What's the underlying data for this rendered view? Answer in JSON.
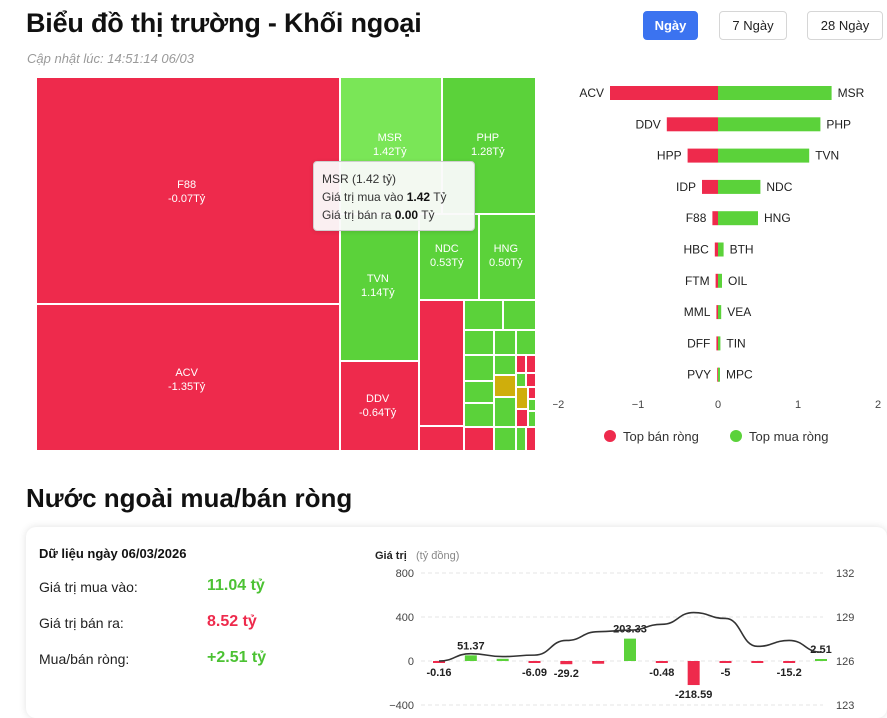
{
  "header": {
    "title": "Biểu đồ thị trường - Khối ngoại",
    "updated": "Cập nhật lúc: 14:51:14 06/03",
    "tabs": [
      {
        "label": "Ngày",
        "active": true
      },
      {
        "label": "7 Ngày",
        "active": false
      },
      {
        "label": "28 Ngày",
        "active": false
      }
    ]
  },
  "treemap": {
    "labels": [
      {
        "code": "F88",
        "value": "-0.07Tỷ"
      },
      {
        "code": "ACV",
        "value": "-1.35Tỷ"
      },
      {
        "code": "MSR",
        "value": "1.42Tỷ"
      },
      {
        "code": "PHP",
        "value": "1.28Tỷ"
      },
      {
        "code": "TVN",
        "value": "1.14Tỷ"
      },
      {
        "code": "NDC",
        "value": "0.53Tỷ"
      },
      {
        "code": "HNG",
        "value": "0.50Tỷ"
      },
      {
        "code": "DDV",
        "value": "-0.64Tỷ"
      }
    ]
  },
  "tooltip": {
    "line1": "MSR (1.42 tỷ)",
    "buy_label": "Giá trị mua vào",
    "buy_value": "1.42",
    "sell_label": "Giá trị bán ra",
    "sell_value": "0.00",
    "unit": "Tỷ"
  },
  "top_chart": {
    "sell": [
      {
        "code": "ACV",
        "value": -1.35
      },
      {
        "code": "DDV",
        "value": -0.64
      },
      {
        "code": "HPP",
        "value": -0.38
      },
      {
        "code": "IDP",
        "value": -0.2
      },
      {
        "code": "F88",
        "value": -0.07
      },
      {
        "code": "HBC",
        "value": -0.04
      },
      {
        "code": "FTM",
        "value": -0.03
      },
      {
        "code": "MML",
        "value": -0.02
      },
      {
        "code": "DFF",
        "value": -0.02
      },
      {
        "code": "PVY",
        "value": -0.01
      }
    ],
    "buy": [
      {
        "code": "MSR",
        "value": 1.42
      },
      {
        "code": "PHP",
        "value": 1.28
      },
      {
        "code": "TVN",
        "value": 1.14
      },
      {
        "code": "NDC",
        "value": 0.53
      },
      {
        "code": "HNG",
        "value": 0.5
      },
      {
        "code": "BTH",
        "value": 0.07
      },
      {
        "code": "OIL",
        "value": 0.05
      },
      {
        "code": "VEA",
        "value": 0.04
      },
      {
        "code": "TIN",
        "value": 0.03
      },
      {
        "code": "MPC",
        "value": 0.02
      }
    ],
    "x_ticks": [
      "−2",
      "−1",
      "0",
      "1",
      "2"
    ],
    "xlim": [
      -2,
      2
    ],
    "legend_sell": "Top bán ròng",
    "legend_buy": "Top mua ròng",
    "sell_color": "#ee2a4c",
    "buy_color": "#5bd23a"
  },
  "section": {
    "title": "Nước ngoài mua/bán ròng",
    "date_label": "Dữ liệu ngày 06/03/2026",
    "buy_label": "Giá trị mua vào:",
    "buy_value": "11.04 tỷ",
    "sell_label": "Giá trị bán ra:",
    "sell_value": "8.52 tỷ",
    "net_label": "Mua/bán ròng:",
    "net_value": "+2.51 tỷ"
  },
  "chart_data": {
    "type": "bar",
    "ylabel": "Giá trị",
    "ylabel_unit": "(tỷ đồng)",
    "ylim": [
      -400,
      800
    ],
    "y_ticks": [
      "800",
      "400",
      "0",
      "−400"
    ],
    "y2_ticks": [
      "132",
      "129",
      "126",
      "123"
    ],
    "y2lim": [
      123,
      132
    ],
    "values": [
      -0.16,
      51.37,
      20,
      -6.09,
      -29.2,
      -25,
      203.33,
      -0.48,
      -218.59,
      -5,
      -6,
      -15.2,
      2.51
    ],
    "labels": [
      "-0.16",
      "51.37",
      "",
      "-6.09",
      "-29.2",
      "",
      "203.33",
      "-0.48",
      "-218.59",
      "-5",
      "",
      "-15.2",
      "2.51"
    ],
    "line": [
      126.0,
      126.5,
      126.3,
      126.4,
      127.4,
      128.0,
      128.1,
      128.5,
      129.3,
      128.9,
      127.0,
      127.4,
      126.6
    ],
    "line_color": "#333333",
    "pos_color": "#5bd23a",
    "neg_color": "#ee2a4c"
  }
}
